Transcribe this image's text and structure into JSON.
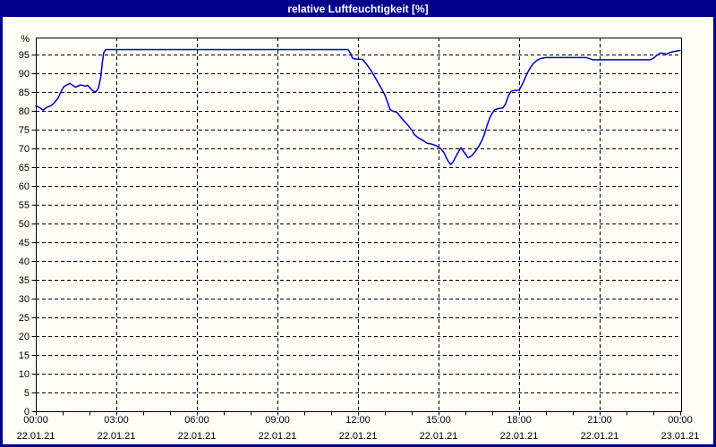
{
  "window": {
    "title": "relative Luftfeuchtigkeit [%]"
  },
  "colors": {
    "frame": "#00008B",
    "titlebar_text": "#FFFFFF",
    "plot_background": "#FDFDF6",
    "line": "#0000CC",
    "grid": "#000000",
    "axis": "#000000",
    "label_text": "#000000"
  },
  "chart_data": {
    "type": "line",
    "title": "relative Luftfeuchtigkeit [%]",
    "xlabel": "",
    "ylabel": "%",
    "unit_label": "%",
    "ylim": [
      0,
      100
    ],
    "xlim_hours": [
      0,
      24
    ],
    "grid": "dashed",
    "legend_position": "none",
    "y_ticks": [
      0,
      5,
      10,
      15,
      20,
      25,
      30,
      35,
      40,
      45,
      50,
      55,
      60,
      65,
      70,
      75,
      80,
      85,
      90,
      95
    ],
    "x_minor_tick_every_hours": 1,
    "x_ticks": [
      {
        "hour": 0,
        "time": "00:00",
        "date": "22.01.21"
      },
      {
        "hour": 3,
        "time": "03:00",
        "date": "22.01.21"
      },
      {
        "hour": 6,
        "time": "06:00",
        "date": "22.01.21"
      },
      {
        "hour": 9,
        "time": "09:00",
        "date": "22.01.21"
      },
      {
        "hour": 12,
        "time": "12:00",
        "date": "22.01.21"
      },
      {
        "hour": 15,
        "time": "15:00",
        "date": "22.01.21"
      },
      {
        "hour": 18,
        "time": "18:00",
        "date": "22.01.21"
      },
      {
        "hour": 21,
        "time": "21:00",
        "date": "22.01.21"
      },
      {
        "hour": 24,
        "time": "00:00",
        "date": "23.01.21"
      }
    ],
    "series": [
      {
        "name": "relative Luftfeuchtigkeit",
        "color": "#0000CC",
        "points": [
          [
            0.0,
            81.3
          ],
          [
            0.13,
            80.9
          ],
          [
            0.27,
            80.2
          ],
          [
            0.4,
            80.9
          ],
          [
            0.57,
            81.4
          ],
          [
            0.67,
            82.0
          ],
          [
            0.83,
            83.4
          ],
          [
            0.93,
            85.0
          ],
          [
            1.03,
            86.3
          ],
          [
            1.13,
            86.8
          ],
          [
            1.27,
            87.3
          ],
          [
            1.37,
            86.8
          ],
          [
            1.47,
            86.3
          ],
          [
            1.67,
            86.9
          ],
          [
            1.83,
            86.6
          ],
          [
            1.93,
            86.8
          ],
          [
            2.03,
            86.0
          ],
          [
            2.13,
            85.3
          ],
          [
            2.23,
            85.0
          ],
          [
            2.33,
            86.0
          ],
          [
            2.42,
            89.0
          ],
          [
            2.48,
            93.0
          ],
          [
            2.53,
            95.5
          ],
          [
            2.6,
            96.3
          ],
          [
            11.63,
            96.3
          ],
          [
            11.72,
            95.3
          ],
          [
            11.8,
            94.0
          ],
          [
            11.9,
            93.8
          ],
          [
            12.17,
            93.7
          ],
          [
            12.3,
            92.6
          ],
          [
            12.5,
            90.6
          ],
          [
            12.63,
            89.0
          ],
          [
            12.77,
            87.2
          ],
          [
            12.9,
            85.6
          ],
          [
            13.0,
            84.2
          ],
          [
            13.1,
            82.3
          ],
          [
            13.2,
            80.3
          ],
          [
            13.3,
            79.9
          ],
          [
            13.45,
            79.6
          ],
          [
            13.55,
            78.7
          ],
          [
            13.7,
            77.4
          ],
          [
            13.87,
            76.1
          ],
          [
            14.0,
            74.9
          ],
          [
            14.1,
            73.7
          ],
          [
            14.23,
            72.9
          ],
          [
            14.4,
            72.2
          ],
          [
            14.57,
            71.4
          ],
          [
            14.77,
            71.1
          ],
          [
            14.93,
            70.7
          ],
          [
            15.07,
            70.0
          ],
          [
            15.2,
            68.9
          ],
          [
            15.33,
            66.9
          ],
          [
            15.45,
            65.7
          ],
          [
            15.55,
            66.5
          ],
          [
            15.7,
            68.6
          ],
          [
            15.83,
            70.2
          ],
          [
            15.97,
            68.8
          ],
          [
            16.1,
            67.5
          ],
          [
            16.23,
            68.0
          ],
          [
            16.37,
            69.2
          ],
          [
            16.5,
            70.6
          ],
          [
            16.6,
            71.9
          ],
          [
            16.7,
            73.6
          ],
          [
            16.8,
            76.0
          ],
          [
            16.9,
            78.0
          ],
          [
            17.0,
            79.4
          ],
          [
            17.1,
            80.3
          ],
          [
            17.23,
            80.6
          ],
          [
            17.4,
            80.8
          ],
          [
            17.5,
            81.9
          ],
          [
            17.6,
            84.0
          ],
          [
            17.7,
            85.2
          ],
          [
            17.8,
            85.4
          ],
          [
            18.0,
            85.5
          ],
          [
            18.1,
            86.8
          ],
          [
            18.2,
            88.3
          ],
          [
            18.3,
            90.0
          ],
          [
            18.42,
            91.5
          ],
          [
            18.53,
            92.6
          ],
          [
            18.67,
            93.5
          ],
          [
            18.83,
            94.0
          ],
          [
            19.0,
            94.2
          ],
          [
            20.5,
            94.2
          ],
          [
            20.62,
            93.9
          ],
          [
            20.75,
            93.6
          ],
          [
            22.87,
            93.6
          ],
          [
            23.0,
            94.0
          ],
          [
            23.13,
            94.8
          ],
          [
            23.27,
            95.4
          ],
          [
            23.4,
            95.3
          ],
          [
            23.5,
            95.1
          ],
          [
            23.6,
            95.5
          ],
          [
            23.77,
            95.8
          ],
          [
            24.0,
            96.1
          ]
        ]
      }
    ]
  }
}
